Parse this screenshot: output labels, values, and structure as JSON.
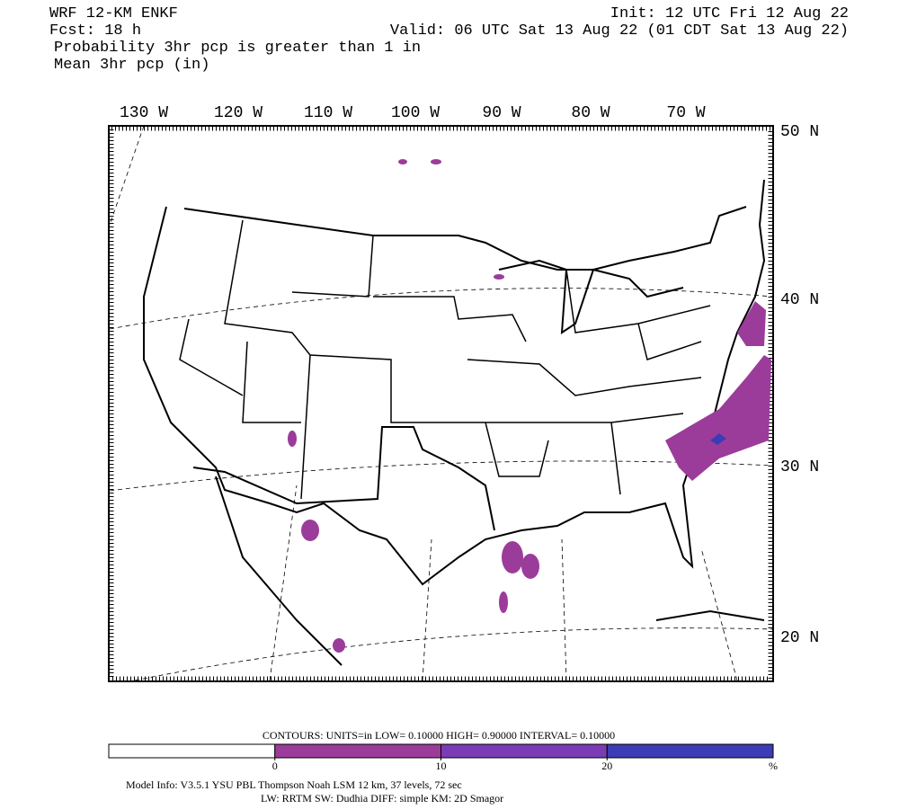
{
  "header": {
    "model": "WRF 12-KM ENKF",
    "init": "Init: 12 UTC Fri 12 Aug 22",
    "fcst": "Fcst:   18 h",
    "valid": "Valid: 06 UTC Sat 13 Aug 22 (01 CDT Sat 13 Aug 22)",
    "field1": "Probability 3hr pcp is greater than 1 in",
    "field2": "Mean 3hr pcp (in)"
  },
  "lon_labels": [
    "130 W",
    "120 W",
    "110 W",
    "100 W",
    "90 W",
    "80 W",
    "70 W"
  ],
  "lat_labels": [
    "50 N",
    "40 N",
    "30 N",
    "20 N"
  ],
  "contours": {
    "text": "CONTOURS:  UNITS=in  LOW= 0.10000      HIGH= 0.90000      INTERVAL=  0.10000"
  },
  "colorbar": {
    "ticks": [
      0,
      10,
      20
    ],
    "unit": "%",
    "colors": [
      "#ffffff",
      "#9b3c9b",
      "#7a3cb4",
      "#3c3cb4"
    ]
  },
  "footer": {
    "line1": "Model Info: V3.5.1          YSU PBL  Thompson      Noah LSM  12 km,     37 levels,    72 sec",
    "line2": "LW: RRTM SW: Dudhia  DIFF: simple KM: 2D Smagor"
  }
}
